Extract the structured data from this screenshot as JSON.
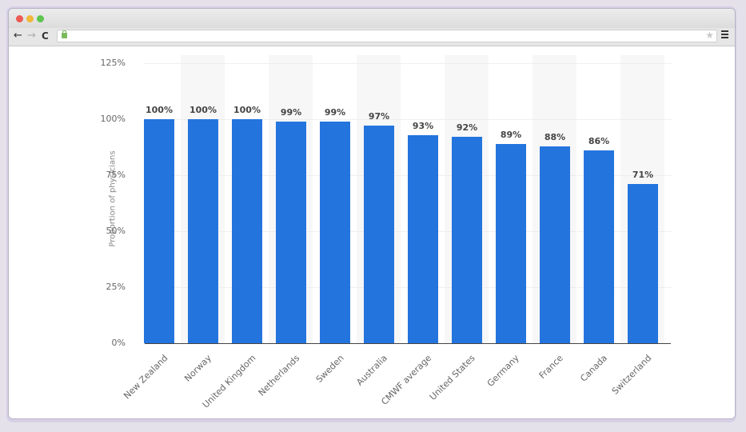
{
  "browser": {
    "window_controls": [
      "close",
      "minimize",
      "maximize"
    ],
    "nav": {
      "back_icon": "←",
      "forward_icon": "→",
      "reload_icon": "C"
    },
    "url": "",
    "star_icon": "★"
  },
  "chart_data": {
    "type": "bar",
    "title": "",
    "xlabel": "",
    "ylabel": "Proportion of physicians",
    "ylim": [
      0,
      125
    ],
    "yticks": [
      "0%",
      "25%",
      "50%",
      "75%",
      "100%",
      "125%"
    ],
    "grid": true,
    "legend": null,
    "bar_color": "#2474de",
    "categories": [
      "New Zealand",
      "Norway",
      "United Kingdom",
      "Netherlands",
      "Sweden",
      "Australia",
      "CMWF average",
      "United States",
      "Germany",
      "France",
      "Canada",
      "Switzerland"
    ],
    "values": [
      100,
      100,
      100,
      99,
      99,
      97,
      93,
      92,
      89,
      88,
      86,
      71
    ],
    "value_labels": [
      "100%",
      "100%",
      "100%",
      "99%",
      "99%",
      "97%",
      "93%",
      "92%",
      "89%",
      "88%",
      "86%",
      "71%"
    ]
  }
}
